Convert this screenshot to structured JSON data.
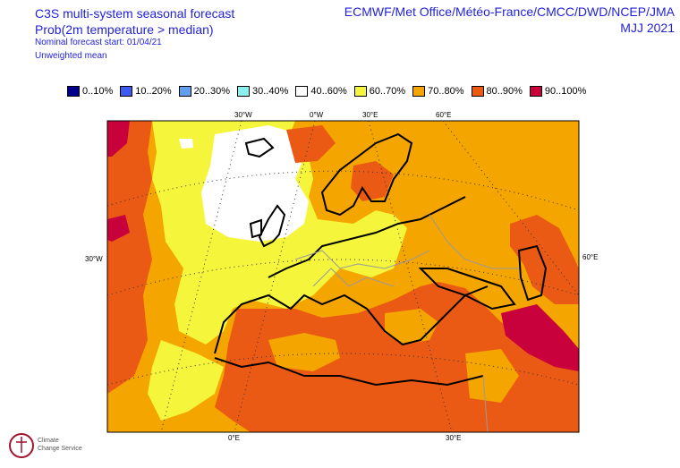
{
  "header": {
    "title_line1": "C3S multi-system seasonal forecast",
    "title_line2": "Prob(2m temperature > median)",
    "subtitle1": "Nominal forecast start: 01/04/21",
    "subtitle2": "Unweighted mean",
    "providers": "ECMWF/Met Office/Météo-France/CMCC/DWD/NCEP/JMA",
    "season": "MJJ 2021"
  },
  "legend": [
    {
      "label": "0..10%",
      "color": "#00008c"
    },
    {
      "label": "10..20%",
      "color": "#3c5af0"
    },
    {
      "label": "20..30%",
      "color": "#5fa0f0"
    },
    {
      "label": "30..40%",
      "color": "#8cf0f0"
    },
    {
      "label": "40..60%",
      "color": "#ffffff"
    },
    {
      "label": "60..70%",
      "color": "#f5f53c"
    },
    {
      "label": "70..80%",
      "color": "#f5a500"
    },
    {
      "label": "80..90%",
      "color": "#eb5a14"
    },
    {
      "label": "90..100%",
      "color": "#c8003c"
    }
  ],
  "axes": {
    "top": [
      "30°W",
      "0°W",
      "30°E",
      "60°E"
    ],
    "left": [
      "30°W"
    ],
    "right": [
      "60°E"
    ],
    "bottom": [
      "0°E",
      "30°E"
    ]
  },
  "logo": {
    "line1": "Climate",
    "line2": "Change Service"
  }
}
